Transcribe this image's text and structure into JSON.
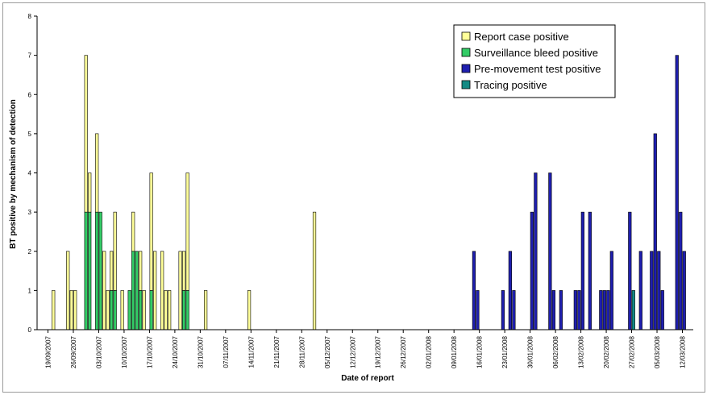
{
  "chart_data": {
    "type": "bar",
    "stacked": true,
    "title": "",
    "xlabel": "Date of report",
    "ylabel": "BT positive by mechanism of detection",
    "ylim": [
      0,
      8
    ],
    "y_ticks": [
      "0",
      "1",
      "2",
      "3",
      "4",
      "5",
      "6",
      "7",
      "8"
    ],
    "x_range": [
      "2007-09-16",
      "2008-03-15"
    ],
    "x_tick_dates": [
      "2007-09-19",
      "2007-09-26",
      "2007-10-03",
      "2007-10-10",
      "2007-10-17",
      "2007-10-24",
      "2007-10-31",
      "2007-11-07",
      "2007-11-14",
      "2007-11-21",
      "2007-11-28",
      "2007-12-05",
      "2007-12-12",
      "2007-12-19",
      "2007-12-26",
      "2008-01-02",
      "2008-01-09",
      "2008-01-16",
      "2008-01-23",
      "2008-01-30",
      "2008-02-06",
      "2008-02-13",
      "2008-02-20",
      "2008-02-27",
      "2008-03-05",
      "2008-03-12"
    ],
    "x_tick_labels": [
      "19/09/2007",
      "26/09/2007",
      "03/10/2007",
      "10/10/2007",
      "17/10/2007",
      "24/10/2007",
      "31/10/2007",
      "07/11/2007",
      "14/11/2007",
      "21/11/2007",
      "28/11/2007",
      "05/12/2007",
      "12/12/2007",
      "19/12/2007",
      "26/12/2007",
      "02/01/2008",
      "09/01/2008",
      "16/01/2008",
      "23/01/2008",
      "30/01/2008",
      "06/02/2008",
      "13/02/2008",
      "20/02/2008",
      "27/02/2008",
      "05/03/2008",
      "12/03/2008"
    ],
    "grid": false,
    "legend_position": "top-right",
    "series": [
      {
        "name": "Report case positive",
        "color": "#ffff99"
      },
      {
        "name": "Surveillance bleed positive",
        "color": "#33cc66"
      },
      {
        "name": "Pre-movement test positive",
        "color": "#1f1faf"
      },
      {
        "name": "Tracing positive",
        "color": "#138a84"
      }
    ],
    "bars": [
      {
        "date": "2007-09-20",
        "values": [
          1,
          0,
          0,
          0
        ]
      },
      {
        "date": "2007-09-24",
        "values": [
          2,
          0,
          0,
          0
        ]
      },
      {
        "date": "2007-09-25",
        "values": [
          1,
          0,
          0,
          0
        ]
      },
      {
        "date": "2007-09-26",
        "values": [
          1,
          0,
          0,
          0
        ]
      },
      {
        "date": "2007-09-29",
        "values": [
          4,
          3,
          0,
          0
        ]
      },
      {
        "date": "2007-09-30",
        "values": [
          1,
          3,
          0,
          0
        ]
      },
      {
        "date": "2007-10-02",
        "values": [
          2,
          3,
          0,
          0
        ]
      },
      {
        "date": "2007-10-03",
        "values": [
          0,
          3,
          0,
          0
        ]
      },
      {
        "date": "2007-10-04",
        "values": [
          2,
          0,
          0,
          0
        ]
      },
      {
        "date": "2007-10-05",
        "values": [
          1,
          0,
          0,
          0
        ]
      },
      {
        "date": "2007-10-06",
        "values": [
          1,
          1,
          0,
          0
        ]
      },
      {
        "date": "2007-10-07",
        "values": [
          2,
          1,
          0,
          0
        ]
      },
      {
        "date": "2007-10-09",
        "values": [
          1,
          0,
          0,
          0
        ]
      },
      {
        "date": "2007-10-11",
        "values": [
          0,
          1,
          0,
          0
        ]
      },
      {
        "date": "2007-10-12",
        "values": [
          1,
          2,
          0,
          0
        ]
      },
      {
        "date": "2007-10-13",
        "values": [
          0,
          2,
          0,
          0
        ]
      },
      {
        "date": "2007-10-14",
        "values": [
          1,
          1,
          0,
          0
        ]
      },
      {
        "date": "2007-10-15",
        "values": [
          1,
          0,
          0,
          0
        ]
      },
      {
        "date": "2007-10-17",
        "values": [
          3,
          1,
          0,
          0
        ]
      },
      {
        "date": "2007-10-18",
        "values": [
          2,
          0,
          0,
          0
        ]
      },
      {
        "date": "2007-10-20",
        "values": [
          2,
          0,
          0,
          0
        ]
      },
      {
        "date": "2007-10-21",
        "values": [
          1,
          0,
          0,
          0
        ]
      },
      {
        "date": "2007-10-22",
        "values": [
          1,
          0,
          0,
          0
        ]
      },
      {
        "date": "2007-10-25",
        "values": [
          2,
          0,
          0,
          0
        ]
      },
      {
        "date": "2007-10-26",
        "values": [
          1,
          1,
          0,
          0
        ]
      },
      {
        "date": "2007-10-27",
        "values": [
          3,
          1,
          0,
          0
        ]
      },
      {
        "date": "2007-11-01",
        "values": [
          1,
          0,
          0,
          0
        ]
      },
      {
        "date": "2007-11-13",
        "values": [
          1,
          0,
          0,
          0
        ]
      },
      {
        "date": "2007-12-01",
        "values": [
          3,
          0,
          0,
          0
        ]
      },
      {
        "date": "2008-01-14",
        "values": [
          0,
          0,
          2,
          0
        ]
      },
      {
        "date": "2008-01-15",
        "values": [
          0,
          0,
          1,
          0
        ]
      },
      {
        "date": "2008-01-22",
        "values": [
          0,
          0,
          1,
          0
        ]
      },
      {
        "date": "2008-01-24",
        "values": [
          0,
          0,
          2,
          0
        ]
      },
      {
        "date": "2008-01-25",
        "values": [
          0,
          0,
          1,
          0
        ]
      },
      {
        "date": "2008-01-30",
        "values": [
          0,
          0,
          3,
          0
        ]
      },
      {
        "date": "2008-01-31",
        "values": [
          0,
          0,
          4,
          0
        ]
      },
      {
        "date": "2008-02-04",
        "values": [
          0,
          0,
          4,
          0
        ]
      },
      {
        "date": "2008-02-05",
        "values": [
          0,
          0,
          1,
          0
        ]
      },
      {
        "date": "2008-02-07",
        "values": [
          0,
          0,
          1,
          0
        ]
      },
      {
        "date": "2008-02-11",
        "values": [
          0,
          0,
          1,
          0
        ]
      },
      {
        "date": "2008-02-12",
        "values": [
          0,
          0,
          1,
          0
        ]
      },
      {
        "date": "2008-02-13",
        "values": [
          0,
          0,
          3,
          0
        ]
      },
      {
        "date": "2008-02-15",
        "values": [
          0,
          0,
          3,
          0
        ]
      },
      {
        "date": "2008-02-18",
        "values": [
          0,
          0,
          1,
          0
        ]
      },
      {
        "date": "2008-02-19",
        "values": [
          0,
          0,
          1,
          0
        ]
      },
      {
        "date": "2008-02-20",
        "values": [
          0,
          0,
          1,
          0
        ]
      },
      {
        "date": "2008-02-21",
        "values": [
          0,
          0,
          2,
          0
        ]
      },
      {
        "date": "2008-02-26",
        "values": [
          0,
          0,
          3,
          0
        ]
      },
      {
        "date": "2008-02-27",
        "values": [
          0,
          0,
          0,
          1
        ]
      },
      {
        "date": "2008-02-29",
        "values": [
          0,
          0,
          2,
          0
        ]
      },
      {
        "date": "2008-03-03",
        "values": [
          0,
          0,
          2,
          0
        ]
      },
      {
        "date": "2008-03-04",
        "values": [
          0,
          0,
          5,
          0
        ]
      },
      {
        "date": "2008-03-05",
        "values": [
          0,
          0,
          2,
          0
        ]
      },
      {
        "date": "2008-03-06",
        "values": [
          0,
          0,
          1,
          0
        ]
      },
      {
        "date": "2008-03-10",
        "values": [
          0,
          0,
          7,
          0
        ]
      },
      {
        "date": "2008-03-11",
        "values": [
          0,
          0,
          3,
          0
        ]
      },
      {
        "date": "2008-03-12",
        "values": [
          0,
          0,
          2,
          0
        ]
      }
    ]
  }
}
